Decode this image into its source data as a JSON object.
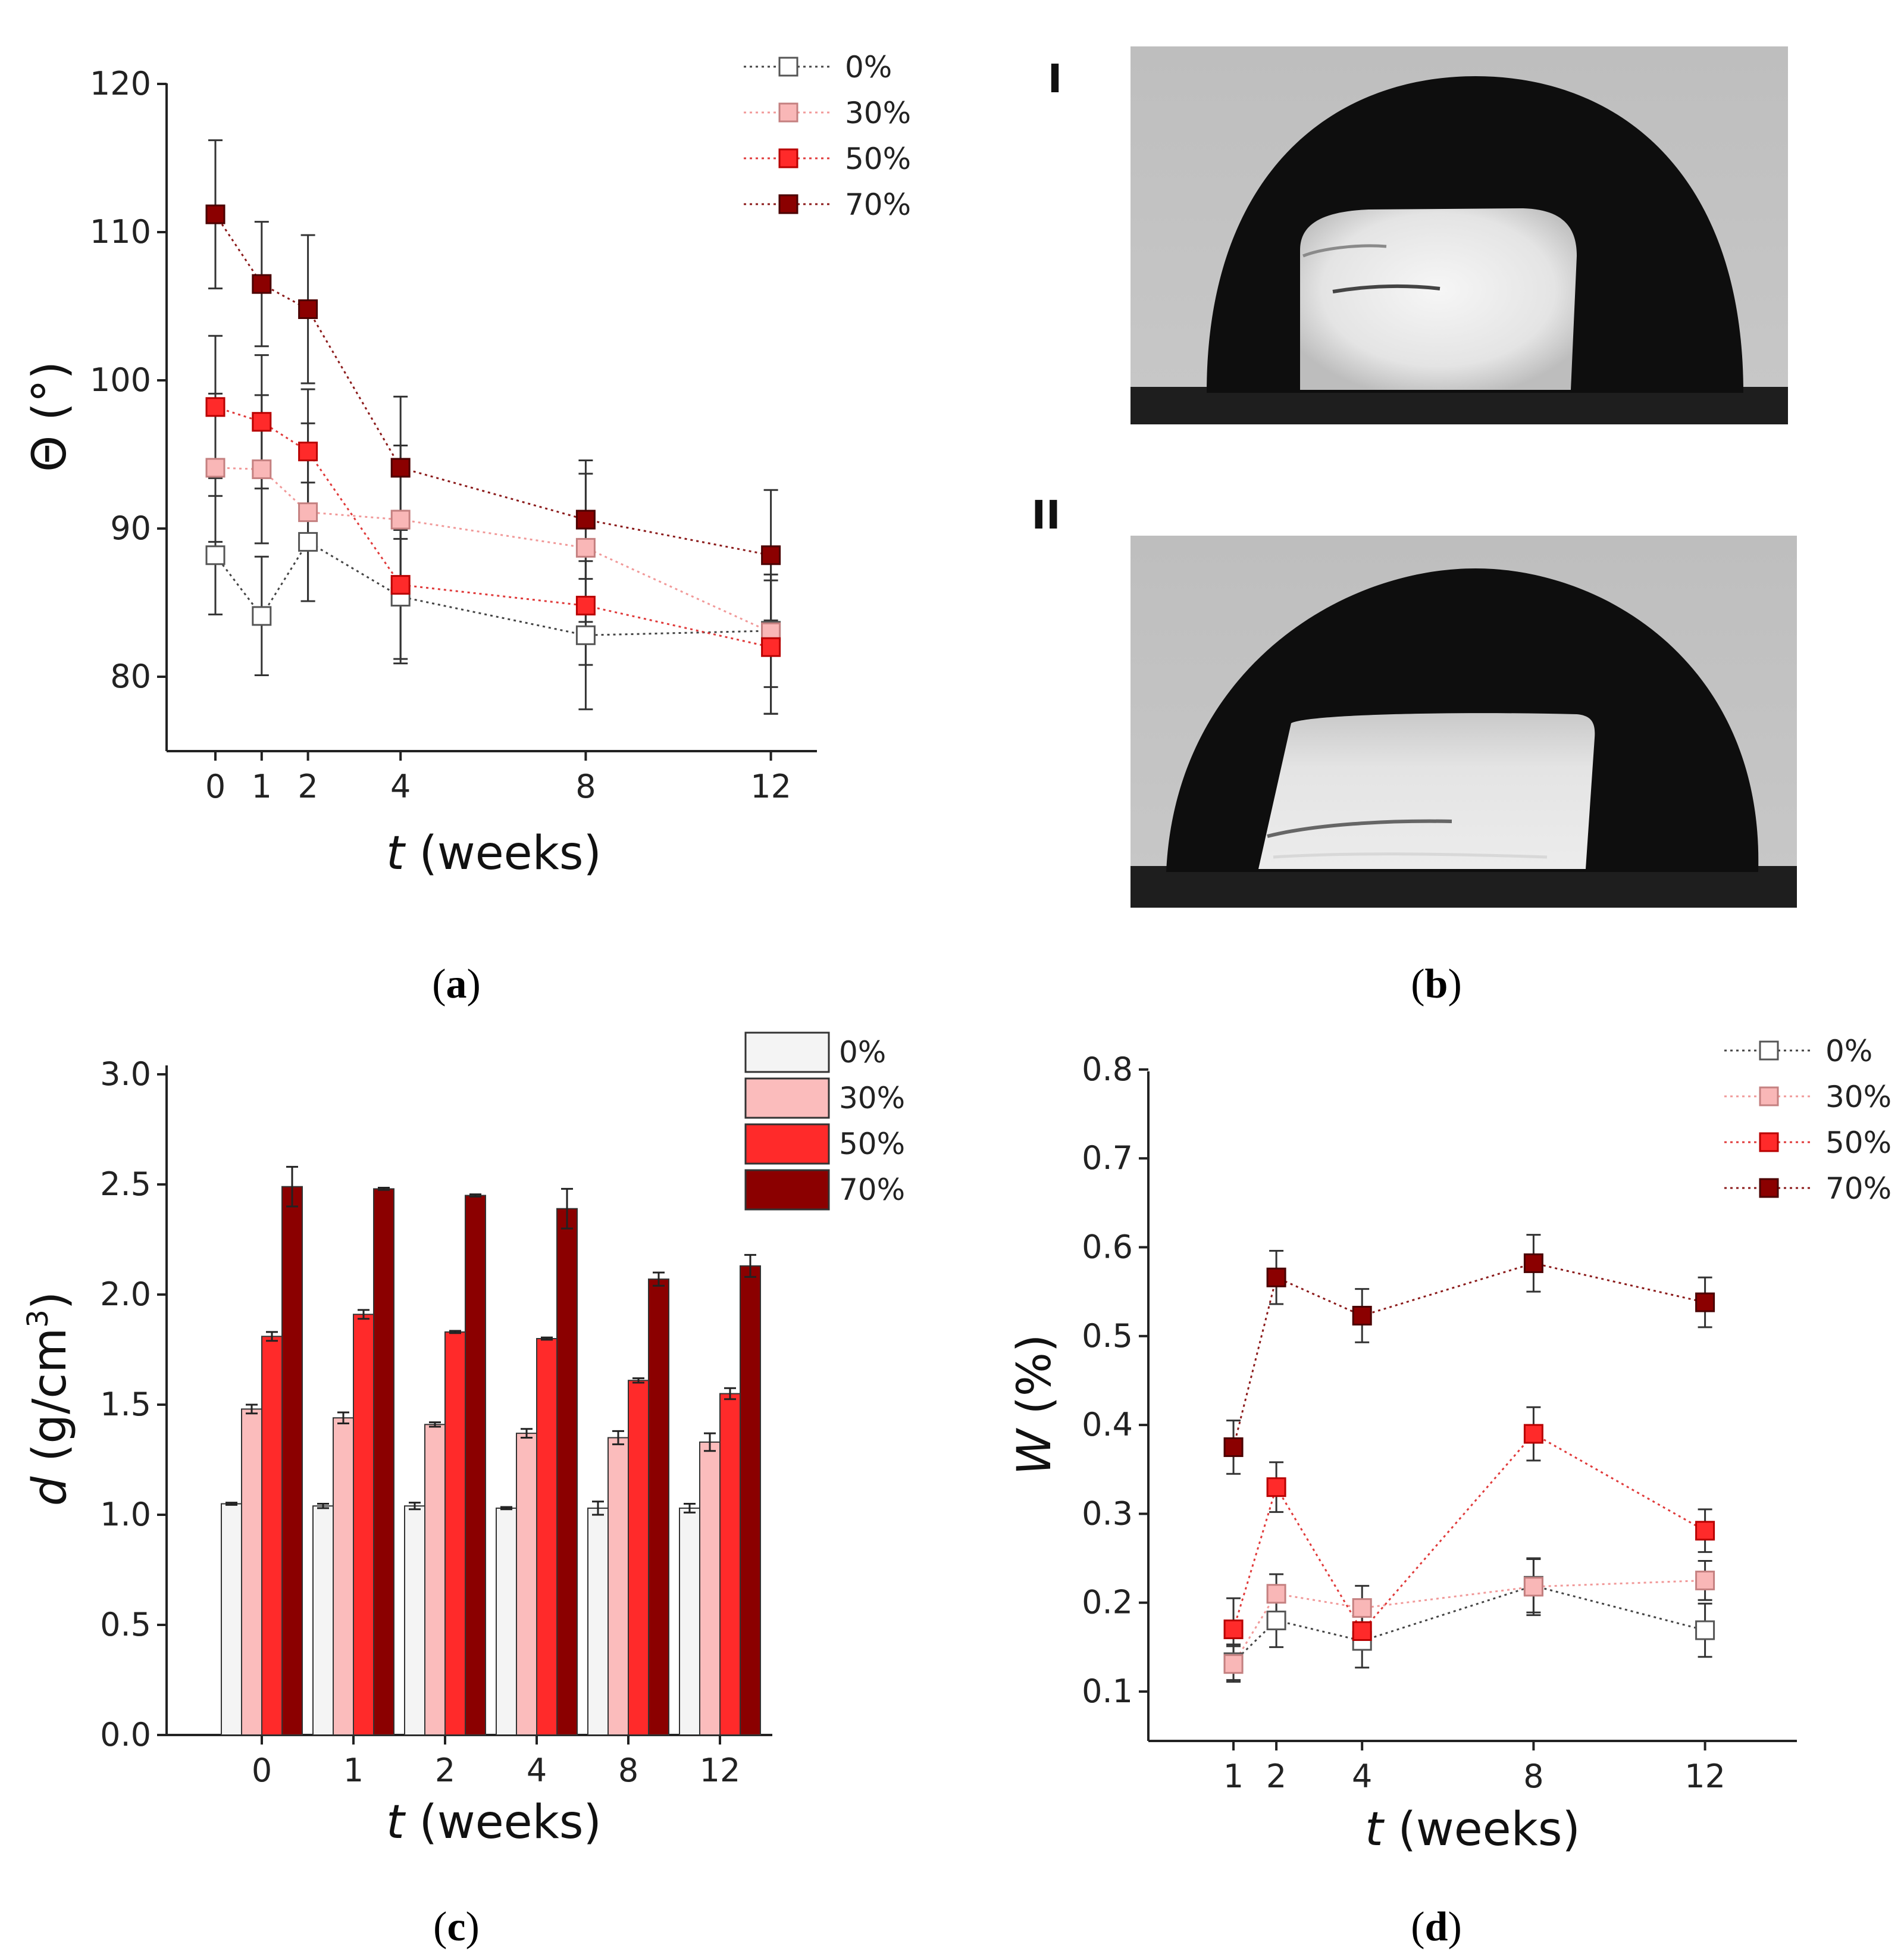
{
  "series_style": [
    {
      "name": "0%",
      "fill": "#ffffff",
      "bar_fill": "#f4f4f4",
      "stroke": "#555555",
      "line": "#444444"
    },
    {
      "name": "30%",
      "fill": "#f9b7b7",
      "bar_fill": "#fbbcbc",
      "stroke": "#c48080",
      "line": "#f19999"
    },
    {
      "name": "50%",
      "fill": "#ff2a2a",
      "bar_fill": "#ff2a2a",
      "stroke": "#b80000",
      "line": "#e03a3a"
    },
    {
      "name": "70%",
      "fill": "#8b0000",
      "bar_fill": "#8b0000",
      "stroke": "#4a0000",
      "line": "#8b1a1a"
    }
  ],
  "panels": {
    "a": {
      "label": "a"
    },
    "b": {
      "label": "b",
      "image_labels": [
        "I",
        "II"
      ]
    },
    "c": {
      "label": "c"
    },
    "d": {
      "label": "d"
    }
  },
  "chart_data": [
    {
      "id": "a",
      "type": "line",
      "title": "",
      "xlabel_var": "t",
      "xlabel_rest": " (weeks)",
      "ylabel": "Θ (°)",
      "x": [
        0,
        1,
        2,
        4,
        8,
        12
      ],
      "xticks": [
        "0",
        "1",
        "2",
        "4",
        "8",
        "12"
      ],
      "yticks": [
        "80",
        "90",
        "100",
        "110",
        "120"
      ],
      "ylim": [
        75,
        120
      ],
      "legend": "top-right",
      "series": [
        {
          "name": "0%",
          "values": [
            88.2,
            84.1,
            89.1,
            85.4,
            82.8,
            83.1
          ],
          "errors": [
            4.0,
            4.0,
            4.0,
            4.5,
            5.0,
            3.8
          ]
        },
        {
          "name": "30%",
          "values": [
            94.1,
            94.0,
            91.1,
            90.6,
            88.7,
            83.0
          ],
          "errors": [
            5.0,
            5.0,
            6.0,
            5.0,
            5.0,
            5.5
          ]
        },
        {
          "name": "50%",
          "values": [
            98.2,
            97.2,
            95.2,
            86.2,
            84.8,
            82.0
          ],
          "errors": [
            4.8,
            4.5,
            4.2,
            5.0,
            4.0,
            4.5
          ]
        },
        {
          "name": "70%",
          "values": [
            111.2,
            106.5,
            104.8,
            94.1,
            90.6,
            88.2
          ],
          "errors": [
            5.0,
            4.2,
            5.0,
            4.8,
            4.0,
            4.4
          ]
        }
      ]
    },
    {
      "id": "c",
      "type": "bar",
      "title": "",
      "xlabel_var": "t",
      "xlabel_rest": " (weeks)",
      "ylabel_var": "d",
      "ylabel_rest": " (g/cm",
      "ylabel_sup": "3",
      "ylabel_close": ")",
      "categories": [
        "0",
        "1",
        "2",
        "4",
        "8",
        "12"
      ],
      "yticks": [
        "0.0",
        "0.5",
        "1.0",
        "1.5",
        "2.0",
        "2.5",
        "3.0"
      ],
      "ylim": [
        0,
        3.0
      ],
      "legend": "top-right",
      "series": [
        {
          "name": "0%",
          "values": [
            1.05,
            1.04,
            1.04,
            1.03,
            1.03,
            1.03
          ],
          "errors": [
            0.005,
            0.01,
            0.015,
            0.005,
            0.03,
            0.02
          ]
        },
        {
          "name": "30%",
          "values": [
            1.48,
            1.44,
            1.41,
            1.37,
            1.35,
            1.33
          ],
          "errors": [
            0.02,
            0.025,
            0.01,
            0.02,
            0.03,
            0.04
          ]
        },
        {
          "name": "50%",
          "values": [
            1.81,
            1.91,
            1.83,
            1.8,
            1.61,
            1.55
          ],
          "errors": [
            0.02,
            0.02,
            0.005,
            0.005,
            0.01,
            0.025
          ]
        },
        {
          "name": "70%",
          "values": [
            2.49,
            2.48,
            2.45,
            2.39,
            2.07,
            2.13
          ],
          "errors": [
            0.09,
            0.005,
            0.005,
            0.09,
            0.03,
            0.05
          ]
        }
      ]
    },
    {
      "id": "d",
      "type": "line",
      "title": "",
      "xlabel_var": "t",
      "xlabel_rest": " (weeks)",
      "ylabel_var": "W",
      "ylabel_rest": " (%)",
      "x": [
        1,
        2,
        4,
        8,
        12
      ],
      "xticks": [
        "1",
        "2",
        "4",
        "8",
        "12"
      ],
      "yticks": [
        "0.1",
        "0.2",
        "0.3",
        "0.4",
        "0.5",
        "0.6",
        "0.7",
        "0.8"
      ],
      "ylim": [
        0.08,
        0.8
      ],
      "legend": "top-right",
      "series": [
        {
          "name": "0%",
          "values": [
            0.133,
            0.18,
            0.157,
            0.219,
            0.169
          ],
          "errors": [
            0.02,
            0.03,
            0.03,
            0.03,
            0.03
          ]
        },
        {
          "name": "30%",
          "values": [
            0.131,
            0.21,
            0.194,
            0.218,
            0.225
          ],
          "errors": [
            0.02,
            0.022,
            0.025,
            0.032,
            0.022
          ]
        },
        {
          "name": "50%",
          "values": [
            0.17,
            0.33,
            0.168,
            0.39,
            0.281
          ],
          "errors": [
            0.035,
            0.028,
            0.02,
            0.03,
            0.024
          ]
        },
        {
          "name": "70%",
          "values": [
            0.375,
            0.566,
            0.523,
            0.582,
            0.538
          ],
          "errors": [
            0.03,
            0.03,
            0.03,
            0.032,
            0.028
          ]
        }
      ]
    }
  ]
}
